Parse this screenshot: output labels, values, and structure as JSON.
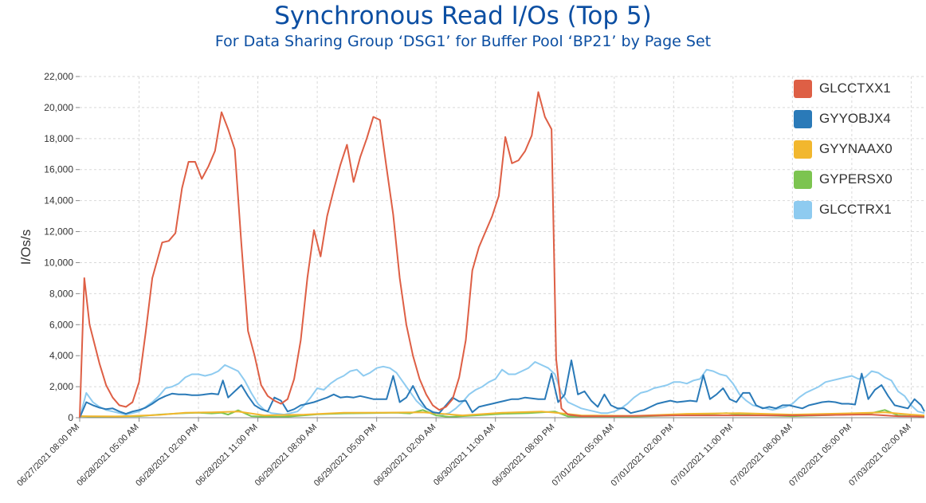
{
  "title": "Synchronous Read I/Os (Top 5)",
  "subtitle": "For Data Sharing Group ‘DSG1’ for Buffer Pool ‘BP21’ by Page Set",
  "chart_data": {
    "type": "line",
    "title": "Synchronous Read I/Os (Top 5)",
    "subtitle": "For Data Sharing Group ‘DSG1’ for Buffer Pool ‘BP21’ by Page Set",
    "xlabel": "",
    "ylabel": "I/Os/s",
    "ylim": [
      0,
      22000
    ],
    "yticks": [
      0,
      2000,
      4000,
      6000,
      8000,
      10000,
      12000,
      14000,
      16000,
      18000,
      20000,
      22000
    ],
    "ytick_labels": [
      "0",
      "2,000",
      "4,000",
      "6,000",
      "8,000",
      "10,000",
      "12,000",
      "14,000",
      "16,000",
      "18,000",
      "20,000",
      "22,000"
    ],
    "xlim": [
      "06/27/2021 08:00 PM",
      "07/03/2021 04:00 AM"
    ],
    "x_labels": [
      "06/27/2021 08:00 PM",
      "06/28/2021 05:00 AM",
      "06/28/2021 02:00 PM",
      "06/28/2021 11:00 PM",
      "06/29/2021 08:00 AM",
      "06/29/2021 05:00 PM",
      "06/30/2021 02:00 AM",
      "06/30/2021 11:00 AM",
      "06/30/2021 08:00 PM",
      "07/01/2021 05:00 AM",
      "07/01/2021 02:00 PM",
      "07/01/2021 11:00 PM",
      "07/02/2021 08:00 AM",
      "07/02/2021 05:00 PM",
      "07/03/2021 02:00 AM"
    ],
    "x_tick_hours": [
      0,
      9,
      18,
      27,
      36,
      45,
      54,
      63,
      72,
      81,
      90,
      99,
      108,
      117,
      126
    ],
    "grid": true,
    "legend_position": "top-right",
    "series": [
      {
        "name": "GLCCTXX1",
        "color": "#de5f45",
        "x_hours": [
          0,
          0.7,
          1.5,
          3,
          4,
          5,
          6,
          7,
          8,
          9,
          10,
          11,
          12.5,
          13.5,
          14.5,
          15.5,
          16.5,
          17.5,
          18.5,
          19.5,
          20.5,
          21.5,
          22.5,
          23.5,
          24.5,
          25.5,
          26.5,
          27.5,
          28.5,
          29.5,
          30.5,
          31.5,
          32.5,
          33.5,
          34.5,
          35.5,
          36.5,
          37.5,
          38.5,
          39.5,
          40.5,
          41.5,
          42.5,
          43.5,
          44.5,
          45.5,
          46.5,
          47.5,
          48.5,
          49.5,
          50.5,
          51.5,
          52.5,
          53.5,
          54.5,
          55.5,
          56.5,
          57.5,
          58.5,
          59.5,
          60.5,
          61.5,
          62.5,
          63.5,
          64.5,
          65.5,
          66.5,
          67.5,
          68.5,
          69.5,
          70.5,
          71.5,
          72.2,
          73,
          74,
          76,
          80,
          90,
          100,
          110,
          118,
          120,
          124,
          127,
          128
        ],
        "values": [
          0,
          9000,
          6000,
          3500,
          2100,
          1300,
          800,
          700,
          1000,
          2300,
          5500,
          9000,
          11300,
          11400,
          11900,
          14800,
          16500,
          16500,
          15400,
          16200,
          17200,
          19700,
          18600,
          17300,
          11200,
          5600,
          4000,
          2100,
          1400,
          1100,
          900,
          1200,
          2500,
          5000,
          9000,
          12100,
          10400,
          13000,
          14700,
          16300,
          17600,
          15200,
          16800,
          18000,
          19400,
          19200,
          16100,
          13100,
          9000,
          6000,
          4000,
          2500,
          1500,
          800,
          500,
          700,
          1200,
          2600,
          5000,
          9500,
          11000,
          12000,
          13000,
          14300,
          18100,
          16400,
          16600,
          17200,
          18200,
          21000,
          19400,
          18600,
          3800,
          600,
          200,
          100,
          100,
          150,
          150,
          150,
          200,
          200,
          100,
          80,
          50
        ]
      },
      {
        "name": "GYYOBJX4",
        "color": "#2a7ab8",
        "x_hours": [
          0,
          1,
          2,
          3,
          4,
          5,
          6,
          7,
          8,
          9,
          10,
          11,
          12,
          13,
          14,
          15,
          16,
          17,
          18,
          19,
          20,
          21,
          21.7,
          22.5,
          23.5,
          24.5,
          25.5,
          26.5,
          27.5,
          28.5,
          29.5,
          30.5,
          31.5,
          32.5,
          33.5,
          34.5,
          35.5,
          36.5,
          37.5,
          38.5,
          39.5,
          40.5,
          41.5,
          42.5,
          43.5,
          44.5,
          45.5,
          46.5,
          47.5,
          48.5,
          49.5,
          50.5,
          51.5,
          52.5,
          53.5,
          54.5,
          55.5,
          56.5,
          57.5,
          58.5,
          59.5,
          60.5,
          61.5,
          62.5,
          63.5,
          64.5,
          65.5,
          66.5,
          67.5,
          68.5,
          69.5,
          70.5,
          71.5,
          72.5,
          73.5,
          74.5,
          75.5,
          76.5,
          77.5,
          78.5,
          79.5,
          80.5,
          81.5,
          82.5,
          83.5,
          84.5,
          85.5,
          86.5,
          87.5,
          88.5,
          89.5,
          90.5,
          91.5,
          92.5,
          93.5,
          94.5,
          95.5,
          96.5,
          97.5,
          98.5,
          99.5,
          100.5,
          101.5,
          102.5,
          103.5,
          104.5,
          105.5,
          106.5,
          107.5,
          108.5,
          109.5,
          110.5,
          111.5,
          112.5,
          113.5,
          114.5,
          115.5,
          116.5,
          117.5,
          118.5,
          119.5,
          120.5,
          121.5,
          122.5,
          123.5,
          124.5,
          125.5,
          126.5,
          127.5,
          128
        ],
        "values": [
          0,
          1000,
          800,
          650,
          550,
          600,
          400,
          250,
          400,
          500,
          650,
          900,
          1200,
          1400,
          1550,
          1500,
          1500,
          1450,
          1450,
          1500,
          1550,
          1500,
          2400,
          1300,
          1700,
          2100,
          1400,
          800,
          550,
          400,
          1300,
          1100,
          400,
          550,
          800,
          900,
          1000,
          1150,
          1300,
          1500,
          1300,
          1350,
          1300,
          1400,
          1300,
          1200,
          1200,
          1200,
          2700,
          1000,
          1300,
          2050,
          1200,
          600,
          350,
          300,
          800,
          1300,
          1050,
          1100,
          350,
          700,
          800,
          900,
          1000,
          1100,
          1200,
          1200,
          1300,
          1250,
          1200,
          1200,
          2850,
          1000,
          1500,
          3700,
          1500,
          1700,
          1100,
          700,
          1500,
          800,
          600,
          600,
          300,
          400,
          500,
          700,
          900,
          1000,
          1100,
          1000,
          1050,
          1100,
          1050,
          2750,
          1200,
          1500,
          1900,
          1200,
          1000,
          1600,
          1600,
          800,
          600,
          700,
          600,
          800,
          800,
          700,
          600,
          800,
          900,
          1000,
          1050,
          1000,
          900,
          900,
          850,
          2850,
          1200,
          1800,
          2100,
          1400,
          800,
          700,
          600,
          1200,
          800,
          400
        ]
      },
      {
        "name": "GYYNAAX0",
        "color": "#f2b72e",
        "x_hours": [
          0,
          6,
          12,
          16,
          20,
          24,
          28,
          34,
          40,
          46,
          52,
          58,
          64,
          70,
          72,
          76,
          84,
          92,
          100,
          108,
          116,
          122,
          126,
          128
        ],
        "values": [
          100,
          80,
          180,
          320,
          350,
          400,
          150,
          200,
          320,
          330,
          350,
          150,
          320,
          400,
          330,
          150,
          120,
          250,
          300,
          200,
          280,
          350,
          200,
          150
        ]
      },
      {
        "name": "GYPERSX0",
        "color": "#7cc450",
        "x_hours": [
          0,
          3,
          6,
          9,
          12,
          14,
          16,
          18,
          20,
          21.5,
          22.5,
          24,
          26,
          28,
          30,
          32,
          36,
          40,
          44,
          48,
          50,
          52,
          54,
          56,
          60,
          64,
          68,
          70,
          72,
          74,
          78,
          82,
          86,
          90,
          94,
          96,
          98,
          100,
          104,
          108,
          112,
          116,
          118,
          120,
          122,
          124,
          126,
          128
        ],
        "values": [
          100,
          50,
          80,
          100,
          200,
          250,
          300,
          320,
          280,
          320,
          200,
          480,
          100,
          60,
          50,
          80,
          220,
          280,
          300,
          320,
          280,
          500,
          150,
          50,
          150,
          250,
          300,
          350,
          400,
          80,
          60,
          50,
          100,
          150,
          200,
          250,
          300,
          200,
          150,
          100,
          150,
          200,
          250,
          300,
          500,
          150,
          100,
          80
        ]
      },
      {
        "name": "GLCCTRX1",
        "color": "#8ecbf0",
        "x_hours": [
          0,
          1,
          2,
          3,
          4,
          5,
          6,
          7,
          8,
          9,
          10,
          11,
          12,
          13,
          14,
          15,
          16,
          17,
          18,
          19,
          20,
          21,
          22,
          23,
          24,
          25,
          26,
          27,
          28,
          29,
          30,
          31,
          32,
          33,
          34,
          35,
          36,
          37,
          38,
          39,
          40,
          41,
          42,
          43,
          44,
          45,
          46,
          47,
          48,
          49,
          50,
          51,
          52,
          53,
          54,
          55,
          56,
          57,
          58,
          59,
          60,
          61,
          62,
          63,
          64,
          65,
          66,
          67,
          68,
          69,
          70,
          71,
          72,
          73,
          74,
          75,
          76,
          77,
          78,
          79,
          80,
          81,
          82,
          83,
          84,
          85,
          86,
          87,
          88,
          89,
          90,
          91,
          92,
          93,
          94,
          95,
          96,
          97,
          98,
          99,
          100,
          101,
          102,
          103,
          104,
          105,
          106,
          107,
          108,
          109,
          110,
          111,
          112,
          113,
          114,
          115,
          116,
          117,
          118,
          119,
          120,
          121,
          122,
          123,
          124,
          125,
          126,
          127,
          128
        ],
        "values": [
          0,
          1600,
          1000,
          700,
          500,
          400,
          300,
          200,
          300,
          400,
          700,
          1000,
          1400,
          1900,
          2000,
          2200,
          2600,
          2800,
          2800,
          2700,
          2800,
          3000,
          3400,
          3200,
          3000,
          2400,
          1600,
          900,
          500,
          300,
          250,
          200,
          300,
          400,
          800,
          1300,
          1900,
          1800,
          2200,
          2500,
          2700,
          3000,
          3100,
          2700,
          2900,
          3200,
          3300,
          3200,
          2900,
          2300,
          1700,
          1100,
          700,
          500,
          300,
          200,
          300,
          600,
          1000,
          1500,
          1800,
          2000,
          2300,
          2500,
          3100,
          2800,
          2800,
          3000,
          3200,
          3600,
          3400,
          3200,
          2800,
          1600,
          1000,
          800,
          600,
          500,
          400,
          300,
          300,
          400,
          600,
          900,
          1300,
          1600,
          1700,
          1900,
          2000,
          2100,
          2300,
          2300,
          2200,
          2400,
          2500,
          3100,
          3000,
          2800,
          2700,
          2200,
          1500,
          1100,
          800,
          700,
          600,
          500,
          600,
          700,
          900,
          1300,
          1600,
          1800,
          2000,
          2300,
          2400,
          2500,
          2600,
          2700,
          2500,
          2600,
          3000,
          2900,
          2600,
          2400,
          1700,
          1400,
          800,
          400,
          300
        ]
      }
    ]
  }
}
